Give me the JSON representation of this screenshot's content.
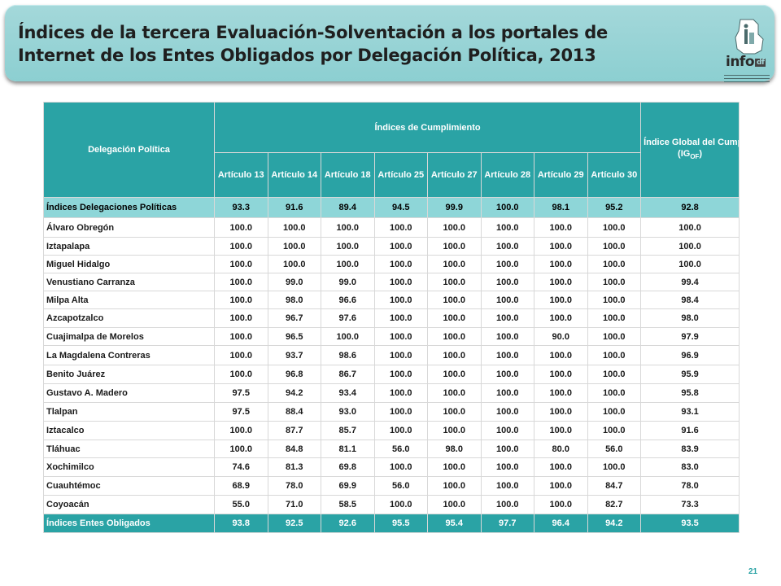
{
  "header": {
    "title": "Índices de la tercera Evaluación-Solventación a los portales de Internet de los Entes Obligados por Delegación Política, 2013",
    "logo_text": "info",
    "logo_sub": "df"
  },
  "table": {
    "col_delegacion": "Delegación Política",
    "col_group": "Índices de Cumplimiento",
    "col_global": "Índice Global del Cumplimiento de la Información de Oficio",
    "col_global_abbr": "(IG",
    "col_global_sub": "OF",
    "col_global_close": ")",
    "articles": [
      "Artículo 13",
      "Artículo 14",
      "Artículo 18",
      "Artículo 25",
      "Artículo 27",
      "Artículo 28",
      "Artículo 29",
      "Artículo 30"
    ],
    "summary_row": {
      "name": "Índices Delegaciones Políticas",
      "values": [
        "93.3",
        "91.6",
        "89.4",
        "94.5",
        "99.9",
        "100.0",
        "98.1",
        "95.2",
        "92.8"
      ]
    },
    "rows": [
      {
        "name": "Álvaro Obregón",
        "values": [
          "100.0",
          "100.0",
          "100.0",
          "100.0",
          "100.0",
          "100.0",
          "100.0",
          "100.0",
          "100.0"
        ]
      },
      {
        "name": "Iztapalapa",
        "values": [
          "100.0",
          "100.0",
          "100.0",
          "100.0",
          "100.0",
          "100.0",
          "100.0",
          "100.0",
          "100.0"
        ]
      },
      {
        "name": "Miguel Hidalgo",
        "values": [
          "100.0",
          "100.0",
          "100.0",
          "100.0",
          "100.0",
          "100.0",
          "100.0",
          "100.0",
          "100.0"
        ]
      },
      {
        "name": "Venustiano Carranza",
        "values": [
          "100.0",
          "99.0",
          "99.0",
          "100.0",
          "100.0",
          "100.0",
          "100.0",
          "100.0",
          "99.4"
        ]
      },
      {
        "name": "Milpa Alta",
        "values": [
          "100.0",
          "98.0",
          "96.6",
          "100.0",
          "100.0",
          "100.0",
          "100.0",
          "100.0",
          "98.4"
        ]
      },
      {
        "name": "Azcapotzalco",
        "values": [
          "100.0",
          "96.7",
          "97.6",
          "100.0",
          "100.0",
          "100.0",
          "100.0",
          "100.0",
          "98.0"
        ]
      },
      {
        "name": "Cuajimalpa de Morelos",
        "values": [
          "100.0",
          "96.5",
          "100.0",
          "100.0",
          "100.0",
          "100.0",
          "90.0",
          "100.0",
          "97.9"
        ]
      },
      {
        "name": "La Magdalena Contreras",
        "values": [
          "100.0",
          "93.7",
          "98.6",
          "100.0",
          "100.0",
          "100.0",
          "100.0",
          "100.0",
          "96.9"
        ]
      },
      {
        "name": "Benito Juárez",
        "values": [
          "100.0",
          "96.8",
          "86.7",
          "100.0",
          "100.0",
          "100.0",
          "100.0",
          "100.0",
          "95.9"
        ]
      },
      {
        "name": "Gustavo A. Madero",
        "values": [
          "97.5",
          "94.2",
          "93.4",
          "100.0",
          "100.0",
          "100.0",
          "100.0",
          "100.0",
          "95.8"
        ]
      },
      {
        "name": "Tlalpan",
        "values": [
          "97.5",
          "88.4",
          "93.0",
          "100.0",
          "100.0",
          "100.0",
          "100.0",
          "100.0",
          "93.1"
        ]
      },
      {
        "name": "Iztacalco",
        "values": [
          "100.0",
          "87.7",
          "85.7",
          "100.0",
          "100.0",
          "100.0",
          "100.0",
          "100.0",
          "91.6"
        ]
      },
      {
        "name": "Tláhuac",
        "values": [
          "100.0",
          "84.8",
          "81.1",
          "56.0",
          "98.0",
          "100.0",
          "80.0",
          "56.0",
          "83.9"
        ]
      },
      {
        "name": "Xochimilco",
        "values": [
          "74.6",
          "81.3",
          "69.8",
          "100.0",
          "100.0",
          "100.0",
          "100.0",
          "100.0",
          "83.0"
        ]
      },
      {
        "name": "Cuauhtémoc",
        "values": [
          "68.9",
          "78.0",
          "69.9",
          "56.0",
          "100.0",
          "100.0",
          "100.0",
          "84.7",
          "78.0"
        ]
      },
      {
        "name": "Coyoacán",
        "values": [
          "55.0",
          "71.0",
          "58.5",
          "100.0",
          "100.0",
          "100.0",
          "100.0",
          "82.7",
          "73.3"
        ]
      }
    ],
    "footer_row": {
      "name": "Índices Entes Obligados",
      "values": [
        "93.8",
        "92.5",
        "92.6",
        "95.5",
        "95.4",
        "97.7",
        "96.4",
        "94.2",
        "93.5"
      ]
    }
  },
  "page_number": "21",
  "colors": {
    "header_teal": "#2aa3a5",
    "highlight_row": "#8ed6d8",
    "banner": "#a4d8da"
  }
}
